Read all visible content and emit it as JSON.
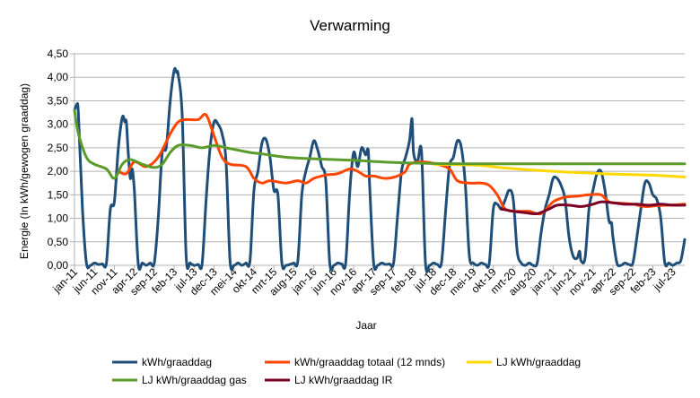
{
  "chart_data": {
    "type": "line",
    "title": "Verwarming",
    "xlabel": "Jaar",
    "ylabel": "Energie (In kWh/gewogen graaddag)",
    "ylim": [
      0,
      4.5
    ],
    "yticks": [
      "0,00",
      "0,50",
      "1,00",
      "1,50",
      "2,00",
      "2,50",
      "3,00",
      "3,50",
      "4,00",
      "4,50"
    ],
    "x_start": "jan-11",
    "x_end": "okt-23",
    "xtick_labels": [
      "jan-11",
      "jun-11",
      "nov-11",
      "apr-12",
      "sep-12",
      "feb-13",
      "jul-13",
      "dec-13",
      "mei-14",
      "okt-14",
      "mrt-15",
      "aug-15",
      "jan-16",
      "jun-16",
      "nov-16",
      "apr-17",
      "sep-17",
      "feb-18",
      "jul-18",
      "dec-18",
      "mei-19",
      "okt-19",
      "mrt-20",
      "aug-20",
      "jan-21",
      "jun-21",
      "nov-21",
      "apr-22",
      "sep-22",
      "feb-23",
      "jul-23"
    ],
    "grid": "horizontal",
    "legend_position": "bottom",
    "series": [
      {
        "name": "kWh/graaddag",
        "color": "#1f4e79",
        "points": [
          [
            "2011-01",
            3.3
          ],
          [
            "2011-01-20",
            3.42
          ],
          [
            "2011-02",
            3.2
          ],
          [
            "2011-03",
            1.2
          ],
          [
            "2011-04",
            0.05
          ],
          [
            "2011-05",
            0.0
          ],
          [
            "2011-06",
            0.05
          ],
          [
            "2011-07",
            0.02
          ],
          [
            "2011-08",
            0.03
          ],
          [
            "2011-09",
            0.05
          ],
          [
            "2011-10",
            1.2
          ],
          [
            "2011-11",
            1.35
          ],
          [
            "2011-12",
            2.5
          ],
          [
            "2012-01",
            3.15
          ],
          [
            "2012-01-20",
            3.05
          ],
          [
            "2012-02",
            3.05
          ],
          [
            "2012-02-15",
            2.4
          ],
          [
            "2012-03",
            1.85
          ],
          [
            "2012-03-15",
            2.05
          ],
          [
            "2012-04",
            1.6
          ],
          [
            "2012-05",
            0.02
          ],
          [
            "2012-06",
            0.05
          ],
          [
            "2012-07",
            0.0
          ],
          [
            "2012-08",
            0.05
          ],
          [
            "2012-09",
            0.05
          ],
          [
            "2012-10",
            1.0
          ],
          [
            "2012-11",
            2.4
          ],
          [
            "2012-12",
            2.5
          ],
          [
            "2013-01",
            3.5
          ],
          [
            "2013-02",
            4.15
          ],
          [
            "2013-02-20",
            4.1
          ],
          [
            "2013-03",
            4.05
          ],
          [
            "2013-04",
            3.2
          ],
          [
            "2013-05",
            0.2
          ],
          [
            "2013-06",
            0.05
          ],
          [
            "2013-07",
            0.0
          ],
          [
            "2013-08",
            0.02
          ],
          [
            "2013-09",
            0.03
          ],
          [
            "2013-10",
            1.4
          ],
          [
            "2013-11",
            2.5
          ],
          [
            "2013-12",
            3.05
          ],
          [
            "2014-01",
            3.0
          ],
          [
            "2014-02",
            2.8
          ],
          [
            "2014-03",
            2.2
          ],
          [
            "2014-04",
            0.1
          ],
          [
            "2014-05",
            0.0
          ],
          [
            "2014-06",
            0.05
          ],
          [
            "2014-07",
            0.0
          ],
          [
            "2014-08",
            0.05
          ],
          [
            "2014-09",
            0.1
          ],
          [
            "2014-10",
            1.6
          ],
          [
            "2014-11",
            2.0
          ],
          [
            "2014-12",
            2.6
          ],
          [
            "2015-01",
            2.68
          ],
          [
            "2015-02",
            2.3
          ],
          [
            "2015-03",
            1.6
          ],
          [
            "2015-04",
            1.5
          ],
          [
            "2015-05",
            0.05
          ],
          [
            "2015-06",
            0.0
          ],
          [
            "2015-07",
            0.02
          ],
          [
            "2015-08",
            0.05
          ],
          [
            "2015-09",
            0.1
          ],
          [
            "2015-10",
            1.5
          ],
          [
            "2015-11",
            2.0
          ],
          [
            "2015-12",
            2.3
          ],
          [
            "2016-01",
            2.65
          ],
          [
            "2016-02",
            2.45
          ],
          [
            "2016-03",
            2.1
          ],
          [
            "2016-04",
            1.8
          ],
          [
            "2016-05",
            0.05
          ],
          [
            "2016-06",
            0.0
          ],
          [
            "2016-07",
            0.05
          ],
          [
            "2016-08",
            0.03
          ],
          [
            "2016-09",
            0.05
          ],
          [
            "2016-10",
            1.55
          ],
          [
            "2016-11",
            2.4
          ],
          [
            "2016-12",
            2.1
          ],
          [
            "2017-01",
            2.5
          ],
          [
            "2017-02",
            2.35
          ],
          [
            "2017-02-20",
            2.45
          ],
          [
            "2017-03",
            1.7
          ],
          [
            "2017-04",
            0.05
          ],
          [
            "2017-05",
            0.0
          ],
          [
            "2017-06",
            0.05
          ],
          [
            "2017-07",
            0.02
          ],
          [
            "2017-08",
            0.03
          ],
          [
            "2017-09",
            0.05
          ],
          [
            "2017-10",
            1.05
          ],
          [
            "2017-11",
            2.0
          ],
          [
            "2017-12",
            2.3
          ],
          [
            "2018-01",
            2.65
          ],
          [
            "2018-01-20",
            3.12
          ],
          [
            "2018-02",
            2.4
          ],
          [
            "2018-03",
            2.2
          ],
          [
            "2018-04",
            2.42
          ],
          [
            "2018-05",
            0.05
          ],
          [
            "2018-06",
            0.0
          ],
          [
            "2018-07",
            0.05
          ],
          [
            "2018-08",
            0.02
          ],
          [
            "2018-09",
            0.05
          ],
          [
            "2018-10",
            1.1
          ],
          [
            "2018-11",
            2.1
          ],
          [
            "2018-12",
            2.3
          ],
          [
            "2019-01",
            2.65
          ],
          [
            "2019-02",
            2.5
          ],
          [
            "2019-03",
            1.7
          ],
          [
            "2019-04",
            0.2
          ],
          [
            "2019-05",
            0.05
          ],
          [
            "2019-06",
            0.0
          ],
          [
            "2019-07",
            0.05
          ],
          [
            "2019-08",
            0.02
          ],
          [
            "2019-09",
            0.05
          ],
          [
            "2019-10",
            1.2
          ],
          [
            "2019-11",
            1.3
          ],
          [
            "2019-12",
            1.2
          ],
          [
            "2020-01",
            1.4
          ],
          [
            "2020-02",
            1.6
          ],
          [
            "2020-03",
            1.4
          ],
          [
            "2020-04",
            0.3
          ],
          [
            "2020-05",
            0.05
          ],
          [
            "2020-06",
            0.0
          ],
          [
            "2020-07",
            0.05
          ],
          [
            "2020-08",
            0.0
          ],
          [
            "2020-09",
            0.05
          ],
          [
            "2020-10",
            0.7
          ],
          [
            "2020-11",
            1.2
          ],
          [
            "2020-12",
            1.5
          ],
          [
            "2021-01",
            1.85
          ],
          [
            "2021-02",
            1.85
          ],
          [
            "2021-03",
            1.7
          ],
          [
            "2021-04",
            1.4
          ],
          [
            "2021-05",
            0.6
          ],
          [
            "2021-06",
            0.2
          ],
          [
            "2021-07",
            0.15
          ],
          [
            "2021-07-20",
            0.3
          ],
          [
            "2021-08",
            0.1
          ],
          [
            "2021-09",
            0.15
          ],
          [
            "2021-10",
            1.2
          ],
          [
            "2021-11",
            1.6
          ],
          [
            "2021-12",
            1.95
          ],
          [
            "2022-01",
            2.0
          ],
          [
            "2022-02",
            1.6
          ],
          [
            "2022-03",
            0.95
          ],
          [
            "2022-03-20",
            0.9
          ],
          [
            "2022-04",
            0.6
          ],
          [
            "2022-05",
            0.05
          ],
          [
            "2022-06",
            0.0
          ],
          [
            "2022-07",
            0.05
          ],
          [
            "2022-08",
            0.02
          ],
          [
            "2022-09",
            0.05
          ],
          [
            "2022-10",
            0.6
          ],
          [
            "2022-11",
            1.2
          ],
          [
            "2022-12",
            1.75
          ],
          [
            "2023-01",
            1.75
          ],
          [
            "2023-02",
            1.5
          ],
          [
            "2023-03",
            1.4
          ],
          [
            "2023-04",
            1.0
          ],
          [
            "2023-05",
            0.05
          ],
          [
            "2023-06",
            0.05
          ],
          [
            "2023-07",
            0.0
          ],
          [
            "2023-08",
            0.05
          ],
          [
            "2023-09",
            0.1
          ],
          [
            "2023-10",
            0.55
          ]
        ]
      },
      {
        "name": "kWh/graaddag totaal (12 mnds)",
        "color": "#ff4500",
        "points": [
          [
            "2011-12",
            2.0
          ],
          [
            "2012-02",
            1.95
          ],
          [
            "2012-04",
            2.2
          ],
          [
            "2012-07",
            2.1
          ],
          [
            "2012-10",
            2.3
          ],
          [
            "2013-01",
            2.8
          ],
          [
            "2013-03",
            3.05
          ],
          [
            "2013-05",
            3.1
          ],
          [
            "2013-08",
            3.1
          ],
          [
            "2013-10",
            3.2
          ],
          [
            "2013-12",
            2.75
          ],
          [
            "2014-02",
            2.3
          ],
          [
            "2014-04",
            2.15
          ],
          [
            "2014-08",
            2.1
          ],
          [
            "2014-10",
            1.85
          ],
          [
            "2014-12",
            1.75
          ],
          [
            "2015-02",
            1.8
          ],
          [
            "2015-06",
            1.75
          ],
          [
            "2015-09",
            1.8
          ],
          [
            "2015-11",
            1.75
          ],
          [
            "2016-01",
            1.85
          ],
          [
            "2016-04",
            1.92
          ],
          [
            "2016-07",
            1.95
          ],
          [
            "2016-10",
            2.05
          ],
          [
            "2016-12",
            2.0
          ],
          [
            "2017-02",
            1.9
          ],
          [
            "2017-04",
            1.9
          ],
          [
            "2017-07",
            1.85
          ],
          [
            "2017-10",
            1.9
          ],
          [
            "2017-12",
            2.0
          ],
          [
            "2018-01",
            2.15
          ],
          [
            "2018-04",
            2.2
          ],
          [
            "2018-08",
            2.15
          ],
          [
            "2018-11",
            2.05
          ],
          [
            "2019-01",
            1.8
          ],
          [
            "2019-04",
            1.75
          ],
          [
            "2019-07",
            1.75
          ],
          [
            "2019-09",
            1.7
          ],
          [
            "2019-11",
            1.5
          ],
          [
            "2020-01",
            1.2
          ],
          [
            "2020-04",
            1.15
          ],
          [
            "2020-07",
            1.15
          ],
          [
            "2020-10",
            1.1
          ],
          [
            "2021-01",
            1.35
          ],
          [
            "2021-04",
            1.45
          ],
          [
            "2021-07",
            1.47
          ],
          [
            "2021-10",
            1.5
          ],
          [
            "2022-01",
            1.5
          ],
          [
            "2022-03",
            1.35
          ],
          [
            "2022-06",
            1.32
          ],
          [
            "2022-09",
            1.3
          ],
          [
            "2022-12",
            1.25
          ],
          [
            "2023-03",
            1.27
          ],
          [
            "2023-06",
            1.28
          ],
          [
            "2023-10",
            1.3
          ]
        ]
      },
      {
        "name": "LJ kWh/graaddag",
        "color": "#ffd700",
        "points": [
          [
            "2018-07",
            2.15
          ],
          [
            "2019-06",
            2.13
          ],
          [
            "2020-01",
            2.07
          ],
          [
            "2021-01",
            2.0
          ],
          [
            "2022-01",
            1.95
          ],
          [
            "2023-01",
            1.92
          ],
          [
            "2023-10",
            1.88
          ]
        ]
      },
      {
        "name": "LJ kWh/graaddag gas",
        "color": "#5b9b2a",
        "points": [
          [
            "2011-01",
            3.3
          ],
          [
            "2011-02",
            2.8
          ],
          [
            "2011-04",
            2.3
          ],
          [
            "2011-06",
            2.15
          ],
          [
            "2011-09",
            2.05
          ],
          [
            "2011-11",
            1.85
          ],
          [
            "2012-01",
            2.15
          ],
          [
            "2012-03",
            2.25
          ],
          [
            "2012-06",
            2.15
          ],
          [
            "2012-09",
            2.08
          ],
          [
            "2012-11",
            2.15
          ],
          [
            "2013-01",
            2.4
          ],
          [
            "2013-03",
            2.55
          ],
          [
            "2013-06",
            2.55
          ],
          [
            "2013-09",
            2.5
          ],
          [
            "2013-12",
            2.55
          ],
          [
            "2014-03",
            2.5
          ],
          [
            "2014-06",
            2.45
          ],
          [
            "2014-09",
            2.4
          ],
          [
            "2014-12",
            2.37
          ],
          [
            "2015-06",
            2.3
          ],
          [
            "2015-12",
            2.27
          ],
          [
            "2016-06",
            2.25
          ],
          [
            "2016-12",
            2.23
          ],
          [
            "2017-06",
            2.2
          ],
          [
            "2017-12",
            2.18
          ],
          [
            "2018-06",
            2.17
          ],
          [
            "2019-06",
            2.16
          ],
          [
            "2023-10",
            2.16
          ]
        ]
      },
      {
        "name": "LJ kWh/graaddag IR",
        "color": "#7b0026",
        "points": [
          [
            "2019-12",
            1.2
          ],
          [
            "2020-03",
            1.15
          ],
          [
            "2020-06",
            1.12
          ],
          [
            "2020-09",
            1.1
          ],
          [
            "2020-12",
            1.2
          ],
          [
            "2021-02",
            1.28
          ],
          [
            "2021-05",
            1.28
          ],
          [
            "2021-08",
            1.25
          ],
          [
            "2021-11",
            1.3
          ],
          [
            "2022-01",
            1.35
          ],
          [
            "2022-04",
            1.33
          ],
          [
            "2022-07",
            1.3
          ],
          [
            "2022-10",
            1.3
          ],
          [
            "2023-01",
            1.28
          ],
          [
            "2023-04",
            1.3
          ],
          [
            "2023-07",
            1.28
          ],
          [
            "2023-10",
            1.28
          ]
        ]
      }
    ]
  }
}
